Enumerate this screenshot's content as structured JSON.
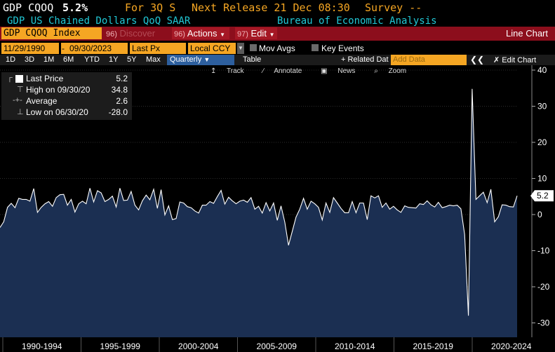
{
  "header": {
    "ticker_name": "GDP CQOQ",
    "last_value": "5.2%",
    "period": "For 3Q S",
    "next_release": "Next Release 21 Dec 08:30",
    "survey": "Survey --",
    "description": "GDP US Chained Dollars QoQ SAAR",
    "source": "Bureau of Economic Analysis"
  },
  "function_bar": {
    "security": "GDP CQOQ Index",
    "discover_num": "96)",
    "discover_label": "Discover",
    "actions_num": "96)",
    "actions_label": "Actions",
    "edit_num": "97)",
    "edit_label": "Edit",
    "chart_type": "Line Chart"
  },
  "date_row": {
    "start_date": "11/29/1990",
    "end_date": "09/30/2023",
    "field": "Last Px",
    "currency": "Local CCY",
    "mov_avgs": "Mov Avgs",
    "key_events": "Key Events"
  },
  "toolbar": {
    "periods": [
      "1D",
      "3D",
      "1M",
      "6M",
      "YTD",
      "1Y",
      "5Y",
      "Max"
    ],
    "frequency": "Quarterly",
    "table": "Table",
    "related": "+ Related Dat",
    "add_data_placeholder": "Add Data",
    "edit_chart": "Edit Chart"
  },
  "subtools": {
    "track": "Track",
    "annotate": "Annotate",
    "news": "News",
    "zoom": "Zoom"
  },
  "legend": {
    "last_price_label": "Last Price",
    "last_price_value": "5.2",
    "high_label": "High on 09/30/20",
    "high_value": "34.8",
    "average_label": "Average",
    "average_value": "2.6",
    "low_label": "Low on 06/30/20",
    "low_value": "-28.0"
  },
  "colors": {
    "accent_orange": "#f5a623",
    "function_red": "#8c0e1c",
    "area_fill": "#1b2f52",
    "title_cyan": "#21c8d6"
  },
  "chart_data": {
    "type": "area",
    "title": "",
    "xlabel": "",
    "ylabel": "",
    "ylim": [
      -32,
      40
    ],
    "y_ticks": [
      40,
      30,
      20,
      10,
      0,
      -10,
      -20,
      -30
    ],
    "x_labels": [
      "1990-1994",
      "1995-1999",
      "2000-2004",
      "2005-2009",
      "2010-2014",
      "2015-2019",
      "2020-2024"
    ],
    "last_value_label": "5.2",
    "series": [
      {
        "values": [
          -3.6,
          -2.0,
          2.0,
          3.1,
          1.9,
          4.5,
          4.2,
          4.2,
          3.7,
          7.2,
          0.6,
          2.0,
          3.0,
          3.6,
          2.3,
          4.7,
          5.5,
          5.6,
          2.6,
          4.2,
          0.7,
          3.0,
          3.7,
          3.0,
          7.3,
          3.5,
          6.6,
          6.0,
          3.6,
          4.2,
          5.1,
          2.1,
          7.3,
          3.9,
          4.0,
          6.4,
          2.6,
          1.3,
          3.8,
          5.4,
          4.1,
          7.0,
          1.7,
          6.9,
          -0.1,
          2.4,
          -1.4,
          -1.1,
          3.5,
          3.2,
          2.2,
          1.9,
          1.0,
          0.4,
          2.6,
          2.6,
          3.6,
          3.1,
          5.0,
          6.7,
          2.9,
          4.8,
          3.8,
          3.0,
          3.7,
          4.0,
          3.4,
          4.7,
          1.5,
          2.3,
          0.4,
          3.3,
          1.0,
          3.2,
          -1.6,
          2.4,
          -2.1,
          -8.5,
          -4.6,
          -0.7,
          1.5,
          4.5,
          1.5,
          3.7,
          3.0,
          2.0,
          -1.5,
          3.2,
          0.6,
          4.7,
          3.2,
          1.7,
          0.5,
          0.5,
          3.6,
          0.5,
          3.2,
          3.2,
          -1.4,
          5.2,
          4.6,
          5.2,
          2.0,
          3.2,
          1.5,
          2.3,
          1.3,
          0.6,
          2.4,
          2.0,
          1.9,
          1.8,
          3.0,
          2.8,
          3.8,
          2.7,
          2.1,
          3.4,
          1.9,
          2.2,
          2.6,
          2.4,
          2.6,
          1.6,
          -5.5,
          -28.0,
          34.8,
          4.2,
          5.2,
          6.2,
          3.3,
          7.0,
          -2.0,
          -0.6,
          2.7,
          2.6,
          2.2,
          2.1,
          5.2
        ]
      }
    ]
  }
}
